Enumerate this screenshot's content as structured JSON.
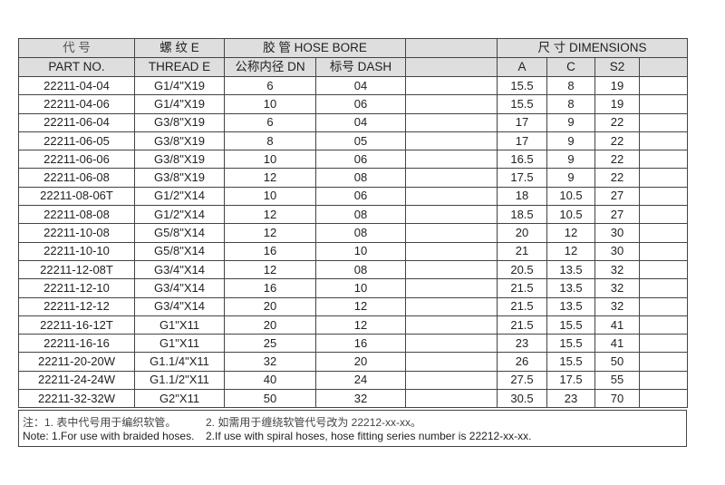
{
  "header": {
    "part_cn": "代 号",
    "part_en": "PART NO.",
    "thread_cn": "螺 纹 E",
    "thread_en": "THREAD E",
    "hose_group": "胶 管 HOSE BORE",
    "dn": "公称内径 DN",
    "dash": "标号 DASH",
    "dim_group": "尺 寸 DIMENSIONS",
    "a": "A",
    "c": "C",
    "s2": "S2"
  },
  "rows": [
    [
      "22211-04-04",
      "G1/4\"X19",
      "6",
      "04",
      "15.5",
      "8",
      "19"
    ],
    [
      "22211-04-06",
      "G1/4\"X19",
      "10",
      "06",
      "15.5",
      "8",
      "19"
    ],
    [
      "22211-06-04",
      "G3/8\"X19",
      "6",
      "04",
      "17",
      "9",
      "22"
    ],
    [
      "22211-06-05",
      "G3/8\"X19",
      "8",
      "05",
      "17",
      "9",
      "22"
    ],
    [
      "22211-06-06",
      "G3/8\"X19",
      "10",
      "06",
      "16.5",
      "9",
      "22"
    ],
    [
      "22211-06-08",
      "G3/8\"X19",
      "12",
      "08",
      "17.5",
      "9",
      "22"
    ],
    [
      "22211-08-06T",
      "G1/2\"X14",
      "10",
      "06",
      "18",
      "10.5",
      "27"
    ],
    [
      "22211-08-08",
      "G1/2\"X14",
      "12",
      "08",
      "18.5",
      "10.5",
      "27"
    ],
    [
      "22211-10-08",
      "G5/8\"X14",
      "12",
      "08",
      "20",
      "12",
      "30"
    ],
    [
      "22211-10-10",
      "G5/8\"X14",
      "16",
      "10",
      "21",
      "12",
      "30"
    ],
    [
      "22211-12-08T",
      "G3/4\"X14",
      "12",
      "08",
      "20.5",
      "13.5",
      "32"
    ],
    [
      "22211-12-10",
      "G3/4\"X14",
      "16",
      "10",
      "21.5",
      "13.5",
      "32"
    ],
    [
      "22211-12-12",
      "G3/4\"X14",
      "20",
      "12",
      "21.5",
      "13.5",
      "32"
    ],
    [
      "22211-16-12T",
      "G1\"X11",
      "20",
      "12",
      "21.5",
      "15.5",
      "41"
    ],
    [
      "22211-16-16",
      "G1\"X11",
      "25",
      "16",
      "23",
      "15.5",
      "41"
    ],
    [
      "22211-20-20W",
      "G1.1/4\"X11",
      "32",
      "20",
      "26",
      "15.5",
      "50"
    ],
    [
      "22211-24-24W",
      "G1.1/2\"X11",
      "40",
      "24",
      "27.5",
      "17.5",
      "55"
    ],
    [
      "22211-32-32W",
      "G2\"X11",
      "50",
      "32",
      "30.5",
      "23",
      "70"
    ]
  ],
  "notes": {
    "cn1": "注：1. 表中代号用于编织软管。",
    "cn2": "2. 如需用于缠绕软管代号改为 22212-xx-xx。",
    "en1": "Note: 1.For use with braided hoses.",
    "en2": "2.If use with spiral hoses, hose fitting series number is 22212-xx-xx."
  }
}
